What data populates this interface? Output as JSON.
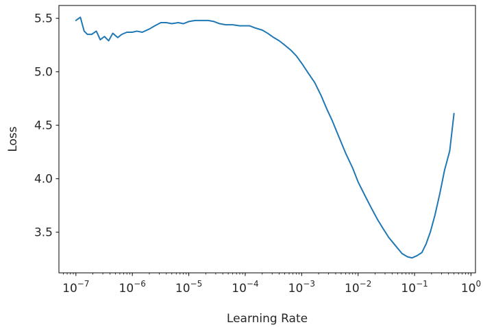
{
  "chart_data": {
    "type": "line",
    "title": "",
    "xlabel": "Learning Rate",
    "ylabel": "Loss",
    "xscale": "log",
    "xlim": [
      5e-08,
      1.2
    ],
    "ylim": [
      3.12,
      5.62
    ],
    "x_ticks": [
      {
        "value": 1e-07,
        "base": "10",
        "exp": "−7"
      },
      {
        "value": 1e-06,
        "base": "10",
        "exp": "−6"
      },
      {
        "value": 1e-05,
        "base": "10",
        "exp": "−5"
      },
      {
        "value": 0.0001,
        "base": "10",
        "exp": "−4"
      },
      {
        "value": 0.001,
        "base": "10",
        "exp": "−3"
      },
      {
        "value": 0.01,
        "base": "10",
        "exp": "−2"
      },
      {
        "value": 0.1,
        "base": "10",
        "exp": "−1"
      },
      {
        "value": 1,
        "base": "10",
        "exp": "0"
      }
    ],
    "y_ticks": [
      {
        "value": 3.5,
        "label": "3.5"
      },
      {
        "value": 4.0,
        "label": "4.0"
      },
      {
        "value": 4.5,
        "label": "4.5"
      },
      {
        "value": 5.0,
        "label": "5.0"
      },
      {
        "value": 5.5,
        "label": "5.5"
      }
    ],
    "grid": false,
    "series": [
      {
        "color": "#1f77b4",
        "points": [
          [
            1e-07,
            5.48
          ],
          [
            1.2e-07,
            5.51
          ],
          [
            1.4e-07,
            5.38
          ],
          [
            1.6e-07,
            5.35
          ],
          [
            1.9e-07,
            5.35
          ],
          [
            2.3e-07,
            5.38
          ],
          [
            2.7e-07,
            5.3
          ],
          [
            3.2e-07,
            5.33
          ],
          [
            3.8e-07,
            5.29
          ],
          [
            4.5e-07,
            5.36
          ],
          [
            5.5e-07,
            5.32
          ],
          [
            6.5e-07,
            5.35
          ],
          [
            8e-07,
            5.37
          ],
          [
            1e-06,
            5.37
          ],
          [
            1.2e-06,
            5.38
          ],
          [
            1.5e-06,
            5.37
          ],
          [
            2e-06,
            5.4
          ],
          [
            2.5e-06,
            5.43
          ],
          [
            3.2e-06,
            5.46
          ],
          [
            4e-06,
            5.46
          ],
          [
            5e-06,
            5.45
          ],
          [
            6.5e-06,
            5.46
          ],
          [
            8e-06,
            5.45
          ],
          [
            1e-05,
            5.47
          ],
          [
            1.3e-05,
            5.48
          ],
          [
            1.7e-05,
            5.48
          ],
          [
            2.2e-05,
            5.48
          ],
          [
            2.8e-05,
            5.47
          ],
          [
            3.5e-05,
            5.45
          ],
          [
            4.5e-05,
            5.44
          ],
          [
            6e-05,
            5.44
          ],
          [
            8e-05,
            5.43
          ],
          [
            0.0001,
            5.43
          ],
          [
            0.00012,
            5.43
          ],
          [
            0.00015,
            5.41
          ],
          [
            0.0002,
            5.39
          ],
          [
            0.00025,
            5.36
          ],
          [
            0.00032,
            5.32
          ],
          [
            0.0004,
            5.29
          ],
          [
            0.0005,
            5.25
          ],
          [
            0.00065,
            5.2
          ],
          [
            0.0008,
            5.15
          ],
          [
            0.001,
            5.08
          ],
          [
            0.0013,
            4.99
          ],
          [
            0.0017,
            4.9
          ],
          [
            0.0022,
            4.78
          ],
          [
            0.0028,
            4.65
          ],
          [
            0.0035,
            4.54
          ],
          [
            0.0045,
            4.4
          ],
          [
            0.006,
            4.24
          ],
          [
            0.008,
            4.1
          ],
          [
            0.01,
            3.97
          ],
          [
            0.013,
            3.85
          ],
          [
            0.017,
            3.73
          ],
          [
            0.022,
            3.62
          ],
          [
            0.028,
            3.53
          ],
          [
            0.035,
            3.45
          ],
          [
            0.045,
            3.38
          ],
          [
            0.06,
            3.3
          ],
          [
            0.075,
            3.27
          ],
          [
            0.09,
            3.26
          ],
          [
            0.11,
            3.28
          ],
          [
            0.135,
            3.31
          ],
          [
            0.16,
            3.39
          ],
          [
            0.19,
            3.5
          ],
          [
            0.23,
            3.66
          ],
          [
            0.28,
            3.86
          ],
          [
            0.34,
            4.08
          ],
          [
            0.42,
            4.26
          ],
          [
            0.5,
            4.61
          ]
        ]
      }
    ]
  }
}
